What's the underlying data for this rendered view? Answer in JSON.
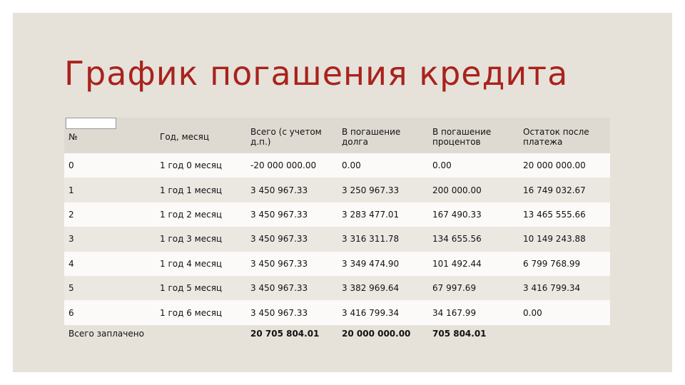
{
  "header": {
    "title": "График погашения кредита"
  },
  "table": {
    "columns": [
      "№",
      "Год, месяц",
      "Всего (с учетом д.п.)",
      "В погашение долга",
      "В погашение процентов",
      "Остаток после платежа"
    ],
    "rows": [
      [
        "0",
        "1 год 0 месяц",
        "-20 000 000.00",
        "0.00",
        "0.00",
        "20 000 000.00"
      ],
      [
        "1",
        "1 год 1 месяц",
        "3 450 967.33",
        "3 250 967.33",
        "200 000.00",
        "16 749 032.67"
      ],
      [
        "2",
        "1 год 2 месяц",
        "3 450 967.33",
        "3 283 477.01",
        "167 490.33",
        "13 465 555.66"
      ],
      [
        "3",
        "1 год 3 месяц",
        "3 450 967.33",
        "3 316 311.78",
        "134 655.56",
        "10 149 243.88"
      ],
      [
        "4",
        "1 год 4 месяц",
        "3 450 967.33",
        "3 349 474.90",
        "101 492.44",
        "6 799 768.99"
      ],
      [
        "5",
        "1 год 5 месяц",
        "3 450 967.33",
        "3 382 969.64",
        "67 997.69",
        "3 416 799.34"
      ],
      [
        "6",
        "1 год 6 месяц",
        "3 450 967.33",
        "3 416 799.34",
        "34 167.99",
        "0.00"
      ]
    ],
    "footer": {
      "label": "Всего заплачено",
      "total": "20 705 804.01",
      "principal": "20 000 000.00",
      "interest": "705 804.01"
    }
  }
}
